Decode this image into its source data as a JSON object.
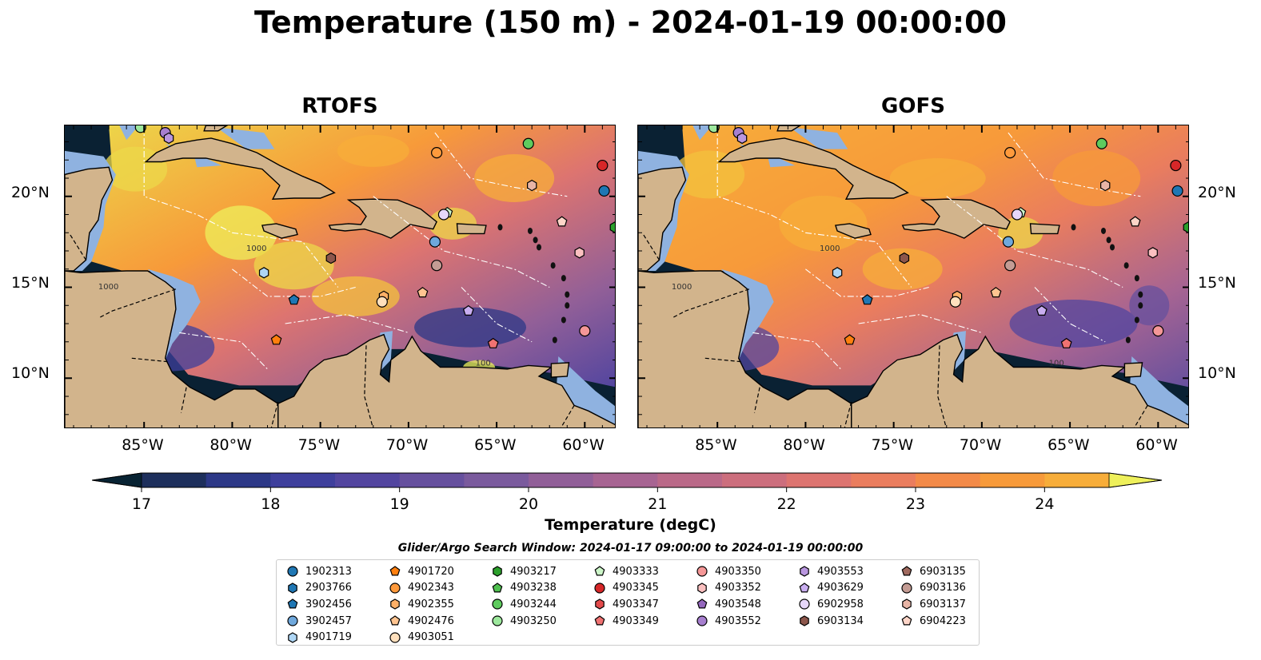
{
  "title": "Temperature (150 m) - 2024-01-19 00:00:00",
  "panels": [
    {
      "title": "RTOFS"
    },
    {
      "title": "GOFS"
    }
  ],
  "lat_ticks": [
    "20°N",
    "15°N",
    "10°N"
  ],
  "lon_ticks": [
    "85°W",
    "80°W",
    "75°W",
    "70°W",
    "65°W",
    "60°W"
  ],
  "colorbar": {
    "label": "Temperature (degC)",
    "ticks": [
      "17",
      "18",
      "19",
      "20",
      "21",
      "22",
      "23",
      "24"
    ],
    "min": 17.0,
    "max": 24.5,
    "extend": "both",
    "colors": [
      "#082333",
      "#1d2f5c",
      "#2c3887",
      "#3e3f9c",
      "#52459f",
      "#66509e",
      "#7a5a9d",
      "#915f98",
      "#a76492",
      "#ba6988",
      "#cc6e7d",
      "#dd7470",
      "#ea7d5e",
      "#f38a48",
      "#f79a3a",
      "#f7ad3a",
      "#f3c23e",
      "#ecd84a",
      "#eef05b"
    ]
  },
  "map_colors": {
    "land": "#d2b48c",
    "shelf": "#8fb2e0",
    "deep": "#0a2133"
  },
  "search_window": "Glider/Argo Search Window: 2024-01-17 09:00:00 to 2024-01-19 00:00:00",
  "floats": [
    {
      "id": "1902313",
      "color": "#1f77b4",
      "marker": "circle",
      "lon": -58.9,
      "lat": 20.3
    },
    {
      "id": "2903766",
      "color": "#1f77b4",
      "marker": "hexagon",
      "lon": null,
      "lat": null
    },
    {
      "id": "3902456",
      "color": "#1f77b4",
      "marker": "pentagon",
      "lon": -76.5,
      "lat": 14.3
    },
    {
      "id": "3902457",
      "color": "#6fa8dc",
      "marker": "circle",
      "lon": -68.5,
      "lat": 17.5
    },
    {
      "id": "4901719",
      "color": "#aed6f5",
      "marker": "hexagon",
      "lon": -78.2,
      "lat": 15.8
    },
    {
      "id": "4901720",
      "color": "#ff7f0e",
      "marker": "pentagon",
      "lon": -77.5,
      "lat": 12.1
    },
    {
      "id": "4902343",
      "color": "#ff9a3c",
      "marker": "circle",
      "lon": -68.4,
      "lat": 22.4
    },
    {
      "id": "4902355",
      "color": "#ffb067",
      "marker": "hexagon",
      "lon": -71.4,
      "lat": 14.5
    },
    {
      "id": "4902476",
      "color": "#ffc490",
      "marker": "pentagon",
      "lon": -69.2,
      "lat": 14.7
    },
    {
      "id": "4903051",
      "color": "#ffe0bd",
      "marker": "circle",
      "lon": -71.5,
      "lat": 14.2
    },
    {
      "id": "4903217",
      "color": "#2ca02c",
      "marker": "hexagon",
      "lon": -58.3,
      "lat": 18.3
    },
    {
      "id": "4903238",
      "color": "#4fc04f",
      "marker": "pentagon",
      "lon": null,
      "lat": null
    },
    {
      "id": "4903244",
      "color": "#5ecb5e",
      "marker": "circle",
      "lon": -63.2,
      "lat": 22.9
    },
    {
      "id": "4903250",
      "color": "#9de89d",
      "marker": "circle",
      "lon": -85.2,
      "lat": 23.8
    },
    {
      "id": "4903333",
      "color": "#ccf5c8",
      "marker": "pentagon",
      "lon": -67.8,
      "lat": 19.1
    },
    {
      "id": "4903345",
      "color": "#d62728",
      "marker": "circle",
      "lon": -59.0,
      "lat": 21.7
    },
    {
      "id": "4903347",
      "color": "#e34a4b",
      "marker": "hexagon",
      "lon": null,
      "lat": null
    },
    {
      "id": "4903349",
      "color": "#f07272",
      "marker": "pentagon",
      "lon": -65.2,
      "lat": 11.9
    },
    {
      "id": "4903350",
      "color": "#f59797",
      "marker": "circle",
      "lon": -60.0,
      "lat": 12.6
    },
    {
      "id": "4903352",
      "color": "#fbc0c0",
      "marker": "hexagon",
      "lon": -60.3,
      "lat": 16.9
    },
    {
      "id": "4903548",
      "color": "#9467bd",
      "marker": "pentagon",
      "lon": null,
      "lat": null
    },
    {
      "id": "4903552",
      "color": "#a77fcf",
      "marker": "circle",
      "lon": -83.8,
      "lat": 23.5
    },
    {
      "id": "4903553",
      "color": "#b996df",
      "marker": "hexagon",
      "lon": -83.6,
      "lat": 23.2
    },
    {
      "id": "4903629",
      "color": "#c9aef0",
      "marker": "pentagon",
      "lon": -66.6,
      "lat": 13.7
    },
    {
      "id": "6902958",
      "color": "#e6d7fa",
      "marker": "circle",
      "lon": -68.0,
      "lat": 19.0
    },
    {
      "id": "6903134",
      "color": "#8c564b",
      "marker": "hexagon",
      "lon": -74.4,
      "lat": 16.6
    },
    {
      "id": "6903135",
      "color": "#a06a5f",
      "marker": "pentagon",
      "lon": null,
      "lat": null
    },
    {
      "id": "6903136",
      "color": "#c49c94",
      "marker": "circle",
      "lon": -68.4,
      "lat": 16.2
    },
    {
      "id": "6903137",
      "color": "#e8b5a6",
      "marker": "hexagon",
      "lon": -63.0,
      "lat": 20.6
    },
    {
      "id": "6904223",
      "color": "#fdd5c8",
      "marker": "pentagon",
      "lon": -61.3,
      "lat": 18.6
    }
  ]
}
